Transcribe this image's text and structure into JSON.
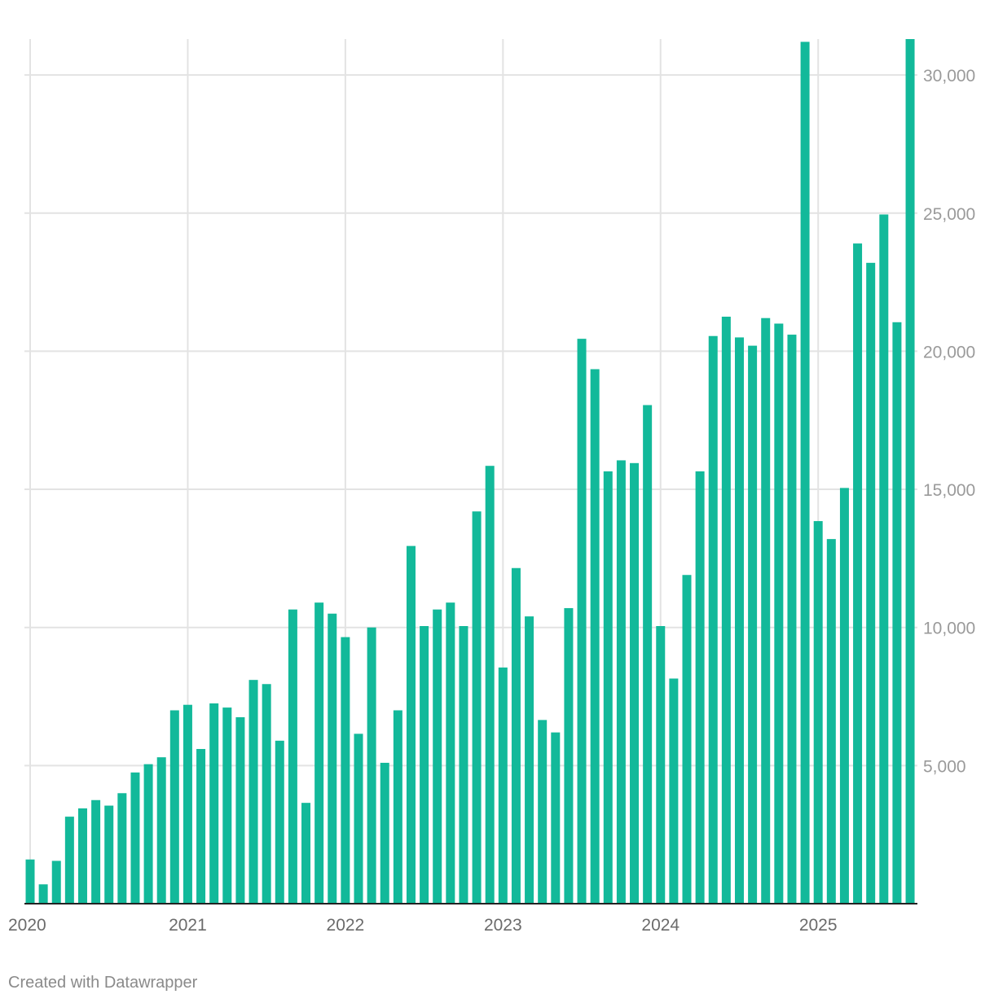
{
  "chart_data": {
    "type": "bar",
    "title": "",
    "xlabel": "",
    "ylabel": "",
    "color": "#12b99a",
    "grid": true,
    "ylim": [
      0,
      31300
    ],
    "y_ticks": [
      5000,
      10000,
      15000,
      20000,
      25000,
      30000
    ],
    "y_tick_labels": [
      "5,000",
      "10,000",
      "15,000",
      "20,000",
      "25,000",
      "30,000"
    ],
    "x_tick_labels": [
      "2020",
      "2021",
      "2022",
      "2023",
      "2024",
      "2025"
    ],
    "categories": [
      "2020-01",
      "2020-02",
      "2020-03",
      "2020-04",
      "2020-05",
      "2020-06",
      "2020-07",
      "2020-08",
      "2020-09",
      "2020-10",
      "2020-11",
      "2020-12",
      "2021-01",
      "2021-02",
      "2021-03",
      "2021-04",
      "2021-05",
      "2021-06",
      "2021-07",
      "2021-08",
      "2021-09",
      "2021-10",
      "2021-11",
      "2021-12",
      "2022-01",
      "2022-02",
      "2022-03",
      "2022-04",
      "2022-05",
      "2022-06",
      "2022-07",
      "2022-08",
      "2022-09",
      "2022-10",
      "2022-11",
      "2022-12",
      "2023-01",
      "2023-02",
      "2023-03",
      "2023-04",
      "2023-05",
      "2023-06",
      "2023-07",
      "2023-08",
      "2023-09",
      "2023-10",
      "2023-11",
      "2023-12",
      "2024-01",
      "2024-02",
      "2024-03",
      "2024-04",
      "2024-05",
      "2024-06",
      "2024-07",
      "2024-08",
      "2024-09",
      "2024-10",
      "2024-11",
      "2024-12",
      "2025-01",
      "2025-02",
      "2025-03",
      "2025-04",
      "2025-05",
      "2025-06",
      "2025-07",
      "2025-08"
    ],
    "values": [
      1600,
      700,
      1550,
      3150,
      3450,
      3750,
      3550,
      4000,
      4750,
      5050,
      5300,
      7000,
      7200,
      5600,
      7250,
      7100,
      6750,
      8100,
      7950,
      5900,
      10650,
      3650,
      10900,
      10500,
      9650,
      6150,
      10000,
      5100,
      7000,
      12950,
      10050,
      10650,
      10900,
      10050,
      14200,
      15850,
      8550,
      12150,
      10400,
      6650,
      6200,
      10700,
      20450,
      19350,
      15650,
      16050,
      15950,
      18050,
      10050,
      8150,
      11900,
      15650,
      20550,
      21250,
      20500,
      20200,
      21200,
      21000,
      20600,
      31200,
      13850,
      13200,
      15050,
      23900,
      23200,
      24950,
      21050,
      31300
    ]
  },
  "footer": {
    "credit": "Created with Datawrapper"
  }
}
